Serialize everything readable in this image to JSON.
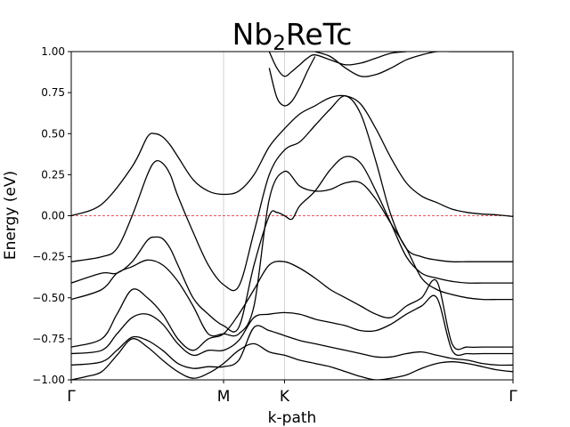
{
  "chart_data": {
    "type": "line",
    "title": {
      "main": "Nb",
      "sub": "2",
      "rest": "ReTc"
    },
    "xlabel": "k-path",
    "ylabel": "Energy (eV)",
    "ylim": [
      -1.0,
      1.0
    ],
    "yticks": [
      "1.00",
      "0.75",
      "0.50",
      "0.25",
      "0.00",
      "−0.25",
      "−0.50",
      "−0.75",
      "−1.00"
    ],
    "ytick_values": [
      1.0,
      0.75,
      0.5,
      0.25,
      0.0,
      -0.25,
      -0.5,
      -0.75,
      -1.0
    ],
    "kpoints": [
      {
        "label": "Γ",
        "x": 0.0
      },
      {
        "label": "M",
        "x": 1.0
      },
      {
        "label": "K",
        "x": 1.4
      },
      {
        "label": "Γ",
        "x": 2.9
      }
    ],
    "xlim": [
      0.0,
      2.9
    ],
    "fermi_level": 0.0,
    "colors": {
      "bands": "#000000",
      "fermi": "#d62728",
      "vlines": "#c8c8c8"
    },
    "series": [
      {
        "x": [
          0,
          0.2,
          0.4,
          0.5,
          0.55,
          0.6,
          0.65,
          0.7,
          0.8,
          0.9,
          1.0,
          1.1,
          1.2,
          1.3,
          1.4,
          1.5,
          1.6,
          1.7,
          1.8,
          1.9,
          2.0,
          2.1,
          2.2,
          2.3,
          2.4,
          2.5,
          2.6,
          2.7,
          2.8,
          2.9
        ],
        "values": [
          0.0,
          0.07,
          0.3,
          0.48,
          0.5,
          0.48,
          0.43,
          0.36,
          0.22,
          0.15,
          0.13,
          0.15,
          0.25,
          0.42,
          0.53,
          0.62,
          0.67,
          0.72,
          0.73,
          0.68,
          0.53,
          0.35,
          0.2,
          0.12,
          0.08,
          0.04,
          0.02,
          0.01,
          0.005,
          -0.005
        ]
      },
      {
        "x": [
          0,
          0.2,
          0.3,
          0.4,
          0.5,
          0.55,
          0.6,
          0.65,
          0.7,
          0.8,
          0.9,
          1.0,
          1.1,
          1.2,
          1.3,
          1.4,
          1.5,
          1.6,
          1.7,
          1.8,
          1.9,
          2.0,
          2.1,
          2.2,
          2.3,
          2.4,
          2.5,
          2.6,
          2.7,
          2.8,
          2.9
        ],
        "values": [
          -0.28,
          -0.25,
          -0.2,
          0.0,
          0.25,
          0.33,
          0.32,
          0.25,
          0.12,
          -0.1,
          -0.3,
          -0.42,
          -0.43,
          -0.1,
          0.25,
          0.4,
          0.45,
          0.55,
          0.65,
          0.73,
          0.62,
          0.33,
          0.0,
          -0.2,
          -0.25,
          -0.27,
          -0.28,
          -0.28,
          -0.28,
          -0.28,
          -0.28
        ]
      },
      {
        "x": [
          0,
          0.2,
          0.3,
          0.4,
          0.5,
          0.55,
          0.6,
          0.65,
          0.7,
          0.8,
          0.9,
          1.0,
          1.1,
          1.2,
          1.3,
          1.35,
          1.4,
          1.45,
          1.5,
          1.6,
          1.7,
          1.8,
          1.9,
          2.0,
          2.1,
          2.2,
          2.3,
          2.4,
          2.5,
          2.6,
          2.7,
          2.8,
          2.9
        ],
        "values": [
          -0.41,
          -0.35,
          -0.35,
          -0.28,
          -0.15,
          -0.13,
          -0.14,
          -0.2,
          -0.3,
          -0.5,
          -0.6,
          -0.67,
          -0.68,
          -0.3,
          0.0,
          0.02,
          0.0,
          -0.02,
          0.06,
          0.15,
          0.28,
          0.36,
          0.32,
          0.15,
          -0.05,
          -0.25,
          -0.35,
          -0.38,
          -0.4,
          -0.41,
          -0.41,
          -0.41,
          -0.41
        ]
      },
      {
        "x": [
          0,
          0.2,
          0.3,
          0.4,
          0.5,
          0.6,
          0.7,
          0.8,
          0.9,
          1.0,
          1.1,
          1.2,
          1.3,
          1.4,
          1.5,
          1.6,
          1.7,
          1.8,
          1.9,
          2.0,
          2.1,
          2.2,
          2.3,
          2.4,
          2.5,
          2.6,
          2.7,
          2.8,
          2.9
        ],
        "values": [
          -0.51,
          -0.45,
          -0.35,
          -0.31,
          -0.27,
          -0.3,
          -0.4,
          -0.55,
          -0.72,
          -0.72,
          -0.72,
          -0.55,
          0.1,
          0.27,
          0.18,
          0.15,
          0.16,
          0.2,
          0.2,
          0.1,
          -0.05,
          -0.2,
          -0.38,
          -0.45,
          -0.48,
          -0.5,
          -0.51,
          -0.51,
          -0.51
        ]
      },
      {
        "x": [
          0,
          0.2,
          0.3,
          0.4,
          0.5,
          0.6,
          0.7,
          0.8,
          0.9,
          1.0,
          1.1,
          1.2,
          1.3,
          1.4,
          1.5,
          1.6,
          1.7,
          1.8,
          1.9,
          2.0,
          2.1,
          2.2,
          2.3,
          2.4,
          2.5,
          2.6,
          2.7,
          2.8,
          2.9
        ],
        "values": [
          -0.8,
          -0.75,
          -0.6,
          -0.45,
          -0.5,
          -0.6,
          -0.75,
          -0.82,
          -0.75,
          -0.72,
          -0.6,
          -0.45,
          -0.3,
          -0.28,
          -0.32,
          -0.38,
          -0.45,
          -0.5,
          -0.55,
          -0.6,
          -0.62,
          -0.55,
          -0.5,
          -0.4,
          -0.78,
          -0.8,
          -0.8,
          -0.8,
          -0.8
        ]
      },
      {
        "x": [
          0,
          0.2,
          0.3,
          0.4,
          0.5,
          0.6,
          0.7,
          0.8,
          0.9,
          1.0,
          1.1,
          1.2,
          1.3,
          1.4,
          1.5,
          1.6,
          1.7,
          1.8,
          1.9,
          2.0,
          2.1,
          2.2,
          2.3,
          2.4,
          2.5,
          2.6,
          2.7,
          2.8,
          2.9
        ],
        "values": [
          -0.84,
          -0.82,
          -0.72,
          -0.62,
          -0.6,
          -0.66,
          -0.78,
          -0.85,
          -0.82,
          -0.82,
          -0.76,
          -0.62,
          -0.6,
          -0.59,
          -0.6,
          -0.63,
          -0.65,
          -0.67,
          -0.7,
          -0.7,
          -0.66,
          -0.6,
          -0.55,
          -0.5,
          -0.82,
          -0.84,
          -0.84,
          -0.84,
          -0.84
        ]
      },
      {
        "x": [
          0,
          0.2,
          0.3,
          0.4,
          0.5,
          0.6,
          0.7,
          0.8,
          0.9,
          1.0,
          1.1,
          1.2,
          1.3,
          1.4,
          1.5,
          1.6,
          1.7,
          1.8,
          1.9,
          2.0,
          2.1,
          2.2,
          2.3,
          2.4,
          2.5,
          2.6,
          2.7,
          2.8,
          2.9
        ],
        "values": [
          -0.91,
          -0.89,
          -0.82,
          -0.74,
          -0.76,
          -0.82,
          -0.9,
          -0.93,
          -0.92,
          -0.92,
          -0.88,
          -0.68,
          -0.7,
          -0.73,
          -0.76,
          -0.78,
          -0.8,
          -0.82,
          -0.84,
          -0.86,
          -0.86,
          -0.84,
          -0.83,
          -0.85,
          -0.87,
          -0.88,
          -0.9,
          -0.91,
          -0.91
        ]
      },
      {
        "x": [
          0,
          0.1,
          0.2,
          0.3,
          0.4,
          0.5,
          0.6,
          0.7,
          0.8,
          0.9,
          1.0,
          1.1,
          1.2,
          1.3,
          1.4,
          1.5,
          1.6,
          1.7,
          1.8,
          1.9,
          2.0,
          2.1,
          2.2,
          2.3,
          2.4,
          2.5,
          2.6,
          2.7,
          2.8,
          2.9
        ],
        "values": [
          -1.0,
          -0.98,
          -0.95,
          -0.85,
          -0.75,
          -0.8,
          -0.88,
          -0.95,
          -0.99,
          -0.96,
          -0.9,
          -0.82,
          -0.78,
          -0.83,
          -0.85,
          -0.88,
          -0.9,
          -0.92,
          -0.95,
          -0.98,
          -1.0,
          -0.99,
          -0.97,
          -0.93,
          -0.9,
          -0.89,
          -0.9,
          -0.92,
          -0.94,
          -0.95
        ]
      },
      {
        "x": [
          1.6,
          1.7,
          1.8,
          1.9,
          2.0,
          2.1,
          2.2,
          2.3,
          2.4,
          2.5,
          2.6,
          2.7,
          2.8,
          2.9
        ],
        "values": [
          1.0,
          0.97,
          0.9,
          0.85,
          0.86,
          0.9,
          0.95,
          0.98,
          1.0,
          1.0,
          1.0,
          1.0,
          1.0,
          1.0
        ]
      },
      {
        "x": [
          1.3,
          1.35,
          1.4,
          1.45,
          1.5,
          1.55,
          1.6,
          1.7,
          1.8,
          1.9,
          2.0,
          2.1,
          2.2
        ],
        "values": [
          1.0,
          0.9,
          0.85,
          0.88,
          0.92,
          0.96,
          0.98,
          0.95,
          0.92,
          0.93,
          0.96,
          0.99,
          1.0
        ]
      },
      {
        "x": [
          1.3,
          1.35,
          1.4,
          1.45,
          1.5,
          1.55,
          1.6
        ],
        "values": [
          0.9,
          0.72,
          0.67,
          0.7,
          0.78,
          0.88,
          0.97
        ]
      }
    ]
  }
}
